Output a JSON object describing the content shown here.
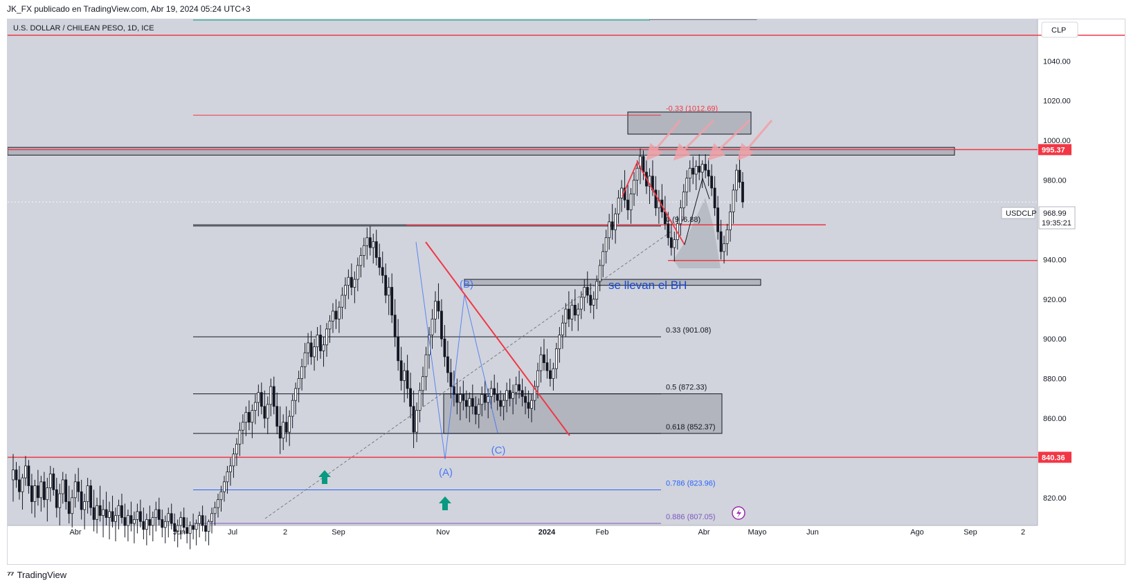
{
  "header": {
    "publisher_line": "JK_FX publicado en TradingView.com, Abr 19, 2024 05:24 UTC+3"
  },
  "chart_data": {
    "type": "candlestick",
    "title": "U.S. DOLLAR / CHILEAN PESO, 1D, ICE",
    "symbol": "USDCLP",
    "currency_label": "CLP",
    "last_price": 968.99,
    "countdown": "19:35:21",
    "y_range": [
      806,
      1061
    ],
    "y_ticks": [
      820,
      840,
      860,
      880,
      900,
      920,
      940,
      960,
      980,
      1000,
      1020,
      1040
    ],
    "y_tick_labels": [
      "820.00",
      "840.00",
      "860.00",
      "880.00",
      "900.00",
      "920.00",
      "940.00",
      "960.00",
      "980.00",
      "1000.00",
      "1020.00",
      "1040.00"
    ],
    "x_labels": [
      "Abr",
      "Jun",
      "Jul",
      "2",
      "Sep",
      "Nov",
      "2024",
      "Feb",
      "Abr",
      "Mayo",
      "Jun",
      "Ago",
      "Sep",
      "2"
    ],
    "price_tags": [
      {
        "value": 995.37,
        "label": "995.37",
        "color": "#f23645"
      },
      {
        "value": 840.36,
        "label": "840.36",
        "color": "#f23645"
      }
    ],
    "fib_levels": [
      {
        "ratio": "-0.33",
        "value": 1012.69,
        "label": "-0.33 (1012.69)",
        "color": "#f23645"
      },
      {
        "ratio": "0",
        "value": 956.88,
        "label": "0 (956.88)",
        "color": "#131722"
      },
      {
        "ratio": "0.33",
        "value": 901.08,
        "label": "0.33 (901.08)",
        "color": "#131722"
      },
      {
        "ratio": "0.5",
        "value": 872.33,
        "label": "0.5 (872.33)",
        "color": "#131722"
      },
      {
        "ratio": "0.618",
        "value": 852.37,
        "label": "0.618 (852.37)",
        "color": "#131722"
      },
      {
        "ratio": "0.786",
        "value": 823.96,
        "label": "0.786 (823.96)",
        "color": "#2962ff"
      },
      {
        "ratio": "0.886",
        "value": 807.05,
        "label": "0.886 (807.05)",
        "color": "#7e57c2"
      }
    ],
    "wave_labels": [
      "(A)",
      "(B)",
      "(C)"
    ],
    "annotation_text": "se llevan el BH",
    "candles": [
      [
        829,
        842,
        818,
        834
      ],
      [
        834,
        838,
        825,
        829
      ],
      [
        829,
        836,
        819,
        823
      ],
      [
        823,
        832,
        814,
        830
      ],
      [
        830,
        841,
        826,
        836
      ],
      [
        836,
        839,
        822,
        826
      ],
      [
        826,
        832,
        812,
        818
      ],
      [
        818,
        829,
        810,
        826
      ],
      [
        826,
        834,
        816,
        820
      ],
      [
        820,
        831,
        813,
        828
      ],
      [
        828,
        833,
        815,
        819
      ],
      [
        819,
        830,
        808,
        825
      ],
      [
        825,
        836,
        818,
        832
      ],
      [
        832,
        835,
        821,
        824
      ],
      [
        824,
        830,
        810,
        815
      ],
      [
        815,
        827,
        806,
        822
      ],
      [
        822,
        833,
        817,
        829
      ],
      [
        829,
        832,
        814,
        818
      ],
      [
        818,
        826,
        807,
        812
      ],
      [
        812,
        824,
        805,
        820
      ],
      [
        820,
        832,
        815,
        828
      ],
      [
        828,
        835,
        818,
        823
      ],
      [
        823,
        829,
        809,
        814
      ],
      [
        814,
        822,
        804,
        818
      ],
      [
        818,
        830,
        812,
        826
      ],
      [
        826,
        829,
        811,
        815
      ],
      [
        815,
        824,
        803,
        809
      ],
      [
        809,
        820,
        802,
        816
      ],
      [
        816,
        826,
        808,
        811
      ],
      [
        811,
        819,
        800,
        814
      ],
      [
        814,
        823,
        806,
        810
      ],
      [
        810,
        818,
        799,
        813
      ],
      [
        813,
        821,
        805,
        808
      ],
      [
        808,
        815,
        798,
        811
      ],
      [
        811,
        819,
        804,
        816
      ],
      [
        816,
        822,
        807,
        810
      ],
      [
        810,
        817,
        800,
        806
      ],
      [
        806,
        814,
        798,
        811
      ],
      [
        811,
        818,
        803,
        807
      ],
      [
        807,
        813,
        797,
        809
      ],
      [
        809,
        817,
        802,
        813
      ],
      [
        813,
        819,
        805,
        808
      ],
      [
        808,
        815,
        799,
        804
      ],
      [
        804,
        812,
        796,
        809
      ],
      [
        809,
        816,
        801,
        806
      ],
      [
        806,
        813,
        798,
        810
      ],
      [
        810,
        818,
        803,
        814
      ],
      [
        814,
        820,
        806,
        809
      ],
      [
        809,
        814,
        800,
        805
      ],
      [
        805,
        811,
        797,
        808
      ],
      [
        808,
        815,
        800,
        812
      ],
      [
        812,
        817,
        804,
        807
      ],
      [
        807,
        812,
        798,
        803
      ],
      [
        803,
        809,
        795,
        806
      ],
      [
        806,
        813,
        799,
        810
      ],
      [
        810,
        815,
        802,
        805
      ],
      [
        805,
        810,
        797,
        802
      ],
      [
        802,
        808,
        794,
        806
      ],
      [
        806,
        812,
        799,
        804
      ],
      [
        804,
        809,
        796,
        807
      ],
      [
        807,
        813,
        800,
        811
      ],
      [
        811,
        816,
        803,
        806
      ],
      [
        806,
        811,
        798,
        803
      ],
      [
        803,
        809,
        796,
        808
      ],
      [
        808,
        815,
        802,
        812
      ],
      [
        812,
        818,
        806,
        815
      ],
      [
        815,
        822,
        810,
        819
      ],
      [
        819,
        826,
        813,
        823
      ],
      [
        823,
        831,
        818,
        828
      ],
      [
        828,
        836,
        822,
        833
      ],
      [
        833,
        840,
        826,
        836
      ],
      [
        836,
        845,
        830,
        842
      ],
      [
        842,
        850,
        836,
        847
      ],
      [
        847,
        858,
        841,
        854
      ],
      [
        854,
        862,
        847,
        858
      ],
      [
        858,
        866,
        851,
        863
      ],
      [
        863,
        869,
        854,
        858
      ],
      [
        858,
        867,
        850,
        864
      ],
      [
        864,
        872,
        857,
        868
      ],
      [
        868,
        877,
        861,
        873
      ],
      [
        873,
        878,
        862,
        866
      ],
      [
        866,
        874,
        855,
        860
      ],
      [
        860,
        871,
        852,
        867
      ],
      [
        867,
        880,
        861,
        876
      ],
      [
        876,
        881,
        862,
        866
      ],
      [
        866,
        873,
        852,
        856
      ],
      [
        856,
        866,
        842,
        850
      ],
      [
        850,
        862,
        844,
        858
      ],
      [
        858,
        866,
        848,
        853
      ],
      [
        853,
        864,
        846,
        861
      ],
      [
        861,
        872,
        855,
        869
      ],
      [
        869,
        878,
        862,
        875
      ],
      [
        875,
        884,
        868,
        880
      ],
      [
        880,
        890,
        874,
        886
      ],
      [
        886,
        898,
        880,
        893
      ],
      [
        893,
        903,
        887,
        898
      ],
      [
        898,
        904,
        887,
        891
      ],
      [
        891,
        900,
        884,
        896
      ],
      [
        896,
        906,
        889,
        902
      ],
      [
        902,
        907,
        890,
        894
      ],
      [
        894,
        901,
        886,
        897
      ],
      [
        897,
        908,
        891,
        905
      ],
      [
        905,
        912,
        898,
        909
      ],
      [
        909,
        918,
        903,
        914
      ],
      [
        914,
        920,
        905,
        910
      ],
      [
        910,
        919,
        903,
        916
      ],
      [
        916,
        926,
        910,
        922
      ],
      [
        922,
        931,
        915,
        927
      ],
      [
        927,
        935,
        920,
        931
      ],
      [
        931,
        938,
        922,
        926
      ],
      [
        926,
        934,
        918,
        930
      ],
      [
        930,
        941,
        924,
        937
      ],
      [
        937,
        946,
        931,
        942
      ],
      [
        942,
        951,
        936,
        947
      ],
      [
        947,
        956,
        940,
        951
      ],
      [
        951,
        957,
        942,
        946
      ],
      [
        946,
        953,
        938,
        949
      ],
      [
        949,
        955,
        937,
        941
      ],
      [
        941,
        948,
        932,
        936
      ],
      [
        936,
        944,
        928,
        932
      ],
      [
        932,
        938,
        918,
        922
      ],
      [
        922,
        931,
        912,
        926
      ],
      [
        926,
        933,
        908,
        912
      ],
      [
        912,
        920,
        896,
        901
      ],
      [
        901,
        910,
        884,
        889
      ],
      [
        889,
        896,
        874,
        879
      ],
      [
        879,
        888,
        868,
        884
      ],
      [
        884,
        892,
        870,
        875
      ],
      [
        875,
        883,
        860,
        866
      ],
      [
        866,
        874,
        845,
        853
      ],
      [
        853,
        868,
        848,
        864
      ],
      [
        864,
        878,
        858,
        874
      ],
      [
        874,
        886,
        866,
        881
      ],
      [
        881,
        896,
        874,
        892
      ],
      [
        892,
        906,
        885,
        902
      ],
      [
        902,
        915,
        895,
        910
      ],
      [
        910,
        924,
        903,
        919
      ],
      [
        919,
        928,
        910,
        914
      ],
      [
        914,
        920,
        896,
        900
      ],
      [
        900,
        907,
        886,
        891
      ],
      [
        891,
        899,
        878,
        883
      ],
      [
        883,
        890,
        870,
        876
      ],
      [
        876,
        884,
        866,
        872
      ],
      [
        872,
        880,
        862,
        868
      ],
      [
        868,
        876,
        859,
        872
      ],
      [
        872,
        879,
        864,
        869
      ],
      [
        869,
        874,
        860,
        866
      ],
      [
        866,
        873,
        858,
        870
      ],
      [
        870,
        877,
        862,
        866
      ],
      [
        866,
        871,
        857,
        862
      ],
      [
        862,
        870,
        855,
        867
      ],
      [
        867,
        876,
        861,
        872
      ],
      [
        872,
        879,
        864,
        868
      ],
      [
        868,
        875,
        860,
        871
      ],
      [
        871,
        879,
        865,
        875
      ],
      [
        875,
        882,
        868,
        872
      ],
      [
        872,
        878,
        864,
        869
      ],
      [
        869,
        874,
        861,
        866
      ],
      [
        866,
        872,
        859,
        869
      ],
      [
        869,
        878,
        863,
        874
      ],
      [
        874,
        880,
        866,
        870
      ],
      [
        870,
        877,
        862,
        873
      ],
      [
        873,
        881,
        867,
        877
      ],
      [
        877,
        884,
        870,
        874
      ],
      [
        874,
        880,
        866,
        871
      ],
      [
        871,
        876,
        862,
        868
      ],
      [
        868,
        874,
        860,
        865
      ],
      [
        865,
        872,
        858,
        869
      ],
      [
        869,
        879,
        864,
        876
      ],
      [
        876,
        888,
        870,
        884
      ],
      [
        884,
        896,
        878,
        892
      ],
      [
        892,
        900,
        884,
        888
      ],
      [
        888,
        895,
        880,
        884
      ],
      [
        884,
        890,
        876,
        880
      ],
      [
        880,
        888,
        874,
        885
      ],
      [
        885,
        898,
        880,
        895
      ],
      [
        895,
        906,
        888,
        902
      ],
      [
        902,
        912,
        895,
        908
      ],
      [
        908,
        918,
        901,
        915
      ],
      [
        915,
        924,
        906,
        910
      ],
      [
        910,
        920,
        904,
        917
      ],
      [
        917,
        925,
        909,
        912
      ],
      [
        912,
        918,
        904,
        915
      ],
      [
        915,
        924,
        910,
        921
      ],
      [
        921,
        930,
        914,
        926
      ],
      [
        926,
        934,
        918,
        922
      ],
      [
        922,
        928,
        913,
        917
      ],
      [
        917,
        924,
        910,
        920
      ],
      [
        920,
        932,
        915,
        929
      ],
      [
        929,
        940,
        924,
        937
      ],
      [
        937,
        948,
        931,
        944
      ],
      [
        944,
        955,
        938,
        951
      ],
      [
        951,
        963,
        945,
        959
      ],
      [
        959,
        968,
        950,
        955
      ],
      [
        955,
        966,
        948,
        963
      ],
      [
        963,
        975,
        958,
        971
      ],
      [
        971,
        980,
        964,
        976
      ],
      [
        976,
        985,
        966,
        970
      ],
      [
        970,
        978,
        960,
        965
      ],
      [
        965,
        976,
        958,
        973
      ],
      [
        973,
        984,
        967,
        980
      ],
      [
        980,
        990,
        972,
        986
      ],
      [
        986,
        996,
        978,
        992
      ],
      [
        992,
        995,
        980,
        984
      ],
      [
        984,
        990,
        973,
        977
      ],
      [
        977,
        986,
        968,
        982
      ],
      [
        982,
        990,
        972,
        975
      ],
      [
        975,
        982,
        962,
        966
      ],
      [
        966,
        975,
        958,
        970
      ],
      [
        970,
        978,
        961,
        964
      ],
      [
        964,
        972,
        955,
        958
      ],
      [
        958,
        964,
        947,
        951
      ],
      [
        951,
        958,
        942,
        946
      ],
      [
        946,
        954,
        939,
        950
      ],
      [
        950,
        962,
        945,
        958
      ],
      [
        958,
        970,
        952,
        966
      ],
      [
        966,
        978,
        960,
        974
      ],
      [
        974,
        985,
        967,
        981
      ],
      [
        981,
        990,
        974,
        986
      ],
      [
        986,
        992,
        978,
        983
      ],
      [
        983,
        990,
        975,
        987
      ],
      [
        987,
        993,
        980,
        984
      ],
      [
        984,
        990,
        976,
        988
      ],
      [
        988,
        993,
        981,
        985
      ],
      [
        985,
        991,
        977,
        982
      ],
      [
        982,
        988,
        972,
        976
      ],
      [
        976,
        982,
        962,
        966
      ],
      [
        966,
        972,
        950,
        954
      ],
      [
        954,
        960,
        940,
        944
      ],
      [
        944,
        952,
        938,
        948
      ],
      [
        948,
        958,
        942,
        955
      ],
      [
        955,
        968,
        949,
        964
      ],
      [
        964,
        978,
        958,
        975
      ],
      [
        975,
        988,
        969,
        985
      ],
      [
        985,
        993,
        976,
        979
      ],
      [
        979,
        984,
        966,
        969
      ]
    ]
  }
}
